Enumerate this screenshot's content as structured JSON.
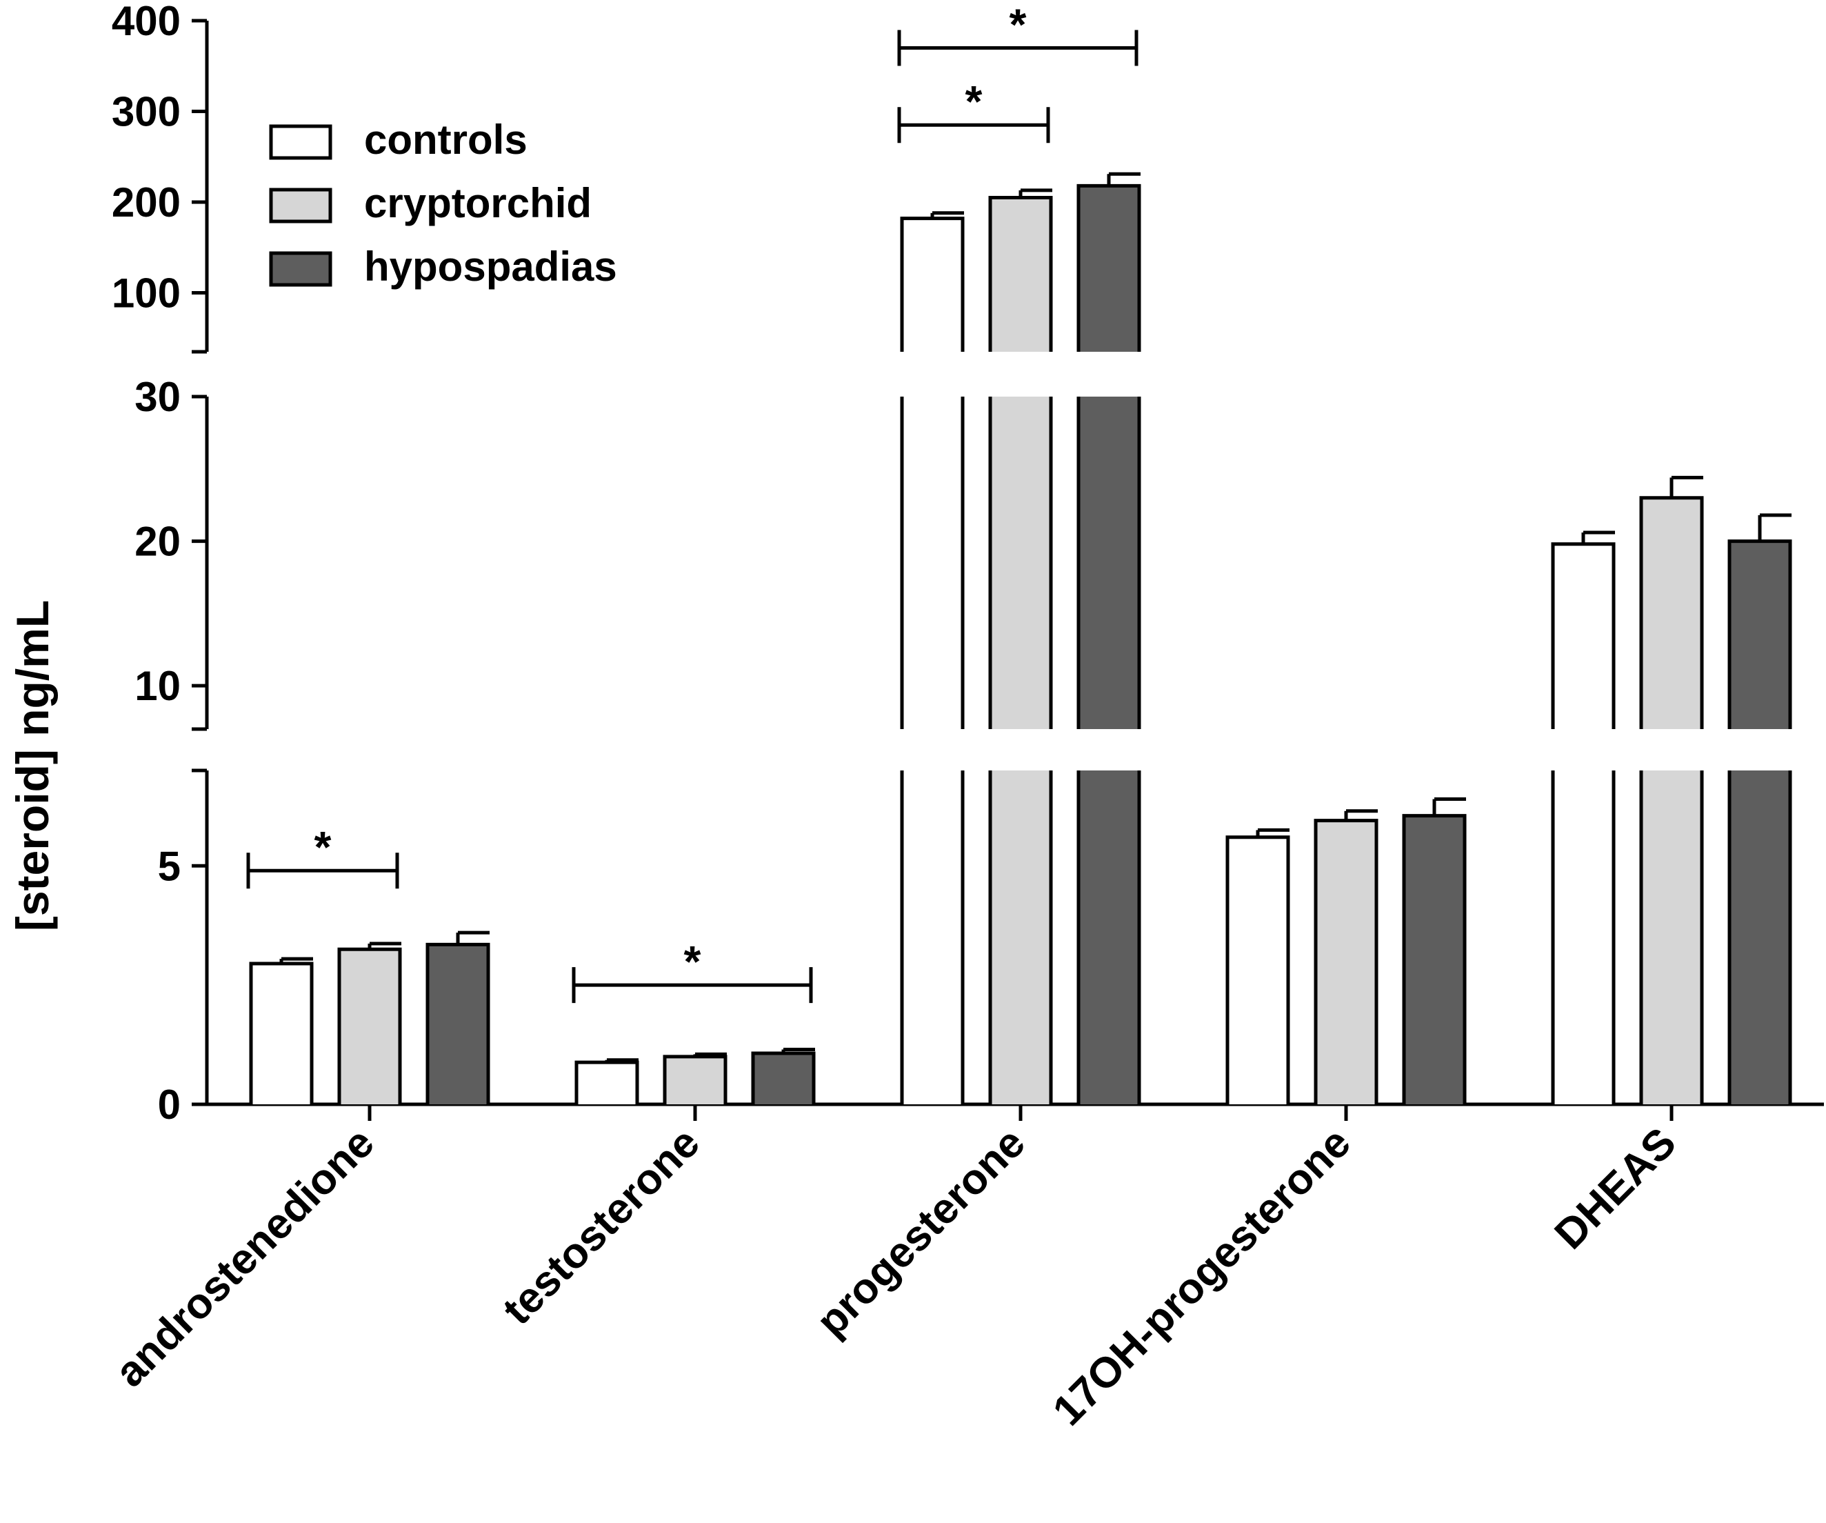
{
  "chart_data": {
    "type": "bar",
    "ylabel": "[steroid] ng/mL",
    "categories": [
      "androstenedione",
      "testosterone",
      "progesterone",
      "17OH-progesterone",
      "DHEAS"
    ],
    "series": [
      {
        "name": "controls",
        "color": "#ffffff",
        "values": [
          2.95,
          0.88,
          182,
          5.6,
          19.8
        ],
        "errors": [
          0.1,
          0.05,
          6,
          0.15,
          0.8
        ]
      },
      {
        "name": "cryptorchid",
        "color": "#d6d6d6",
        "values": [
          3.25,
          1.0,
          205,
          5.95,
          23.0
        ],
        "errors": [
          0.12,
          0.05,
          8,
          0.2,
          1.4
        ]
      },
      {
        "name": "hypospadias",
        "color": "#5e5e5e",
        "values": [
          3.35,
          1.07,
          218,
          6.05,
          20.0
        ],
        "errors": [
          0.25,
          0.08,
          13,
          0.35,
          1.8
        ]
      }
    ],
    "y_segments": [
      {
        "range": [
          0,
          7
        ],
        "ticks": [
          0,
          5
        ],
        "tick_labels": [
          "0",
          "5"
        ]
      },
      {
        "range": [
          7,
          30
        ],
        "ticks": [
          10,
          20,
          30
        ],
        "tick_labels": [
          "10",
          "20",
          "30"
        ]
      },
      {
        "range": [
          35,
          400
        ],
        "ticks": [
          100,
          200,
          300,
          400
        ],
        "tick_labels": [
          "100",
          "200",
          "300",
          "400"
        ]
      }
    ],
    "significance": [
      {
        "category": 0,
        "from_series": 0,
        "to_series": 1,
        "y": 4.9,
        "label": "*"
      },
      {
        "category": 1,
        "from_series": 0,
        "to_series": 2,
        "y": 2.5,
        "label": "*"
      },
      {
        "category": 2,
        "from_series": 0,
        "to_series": 1,
        "y": 285,
        "label": "*"
      },
      {
        "category": 2,
        "from_series": 0,
        "to_series": 2,
        "y": 370,
        "label": "*"
      }
    ],
    "legend_position": "top-left"
  }
}
